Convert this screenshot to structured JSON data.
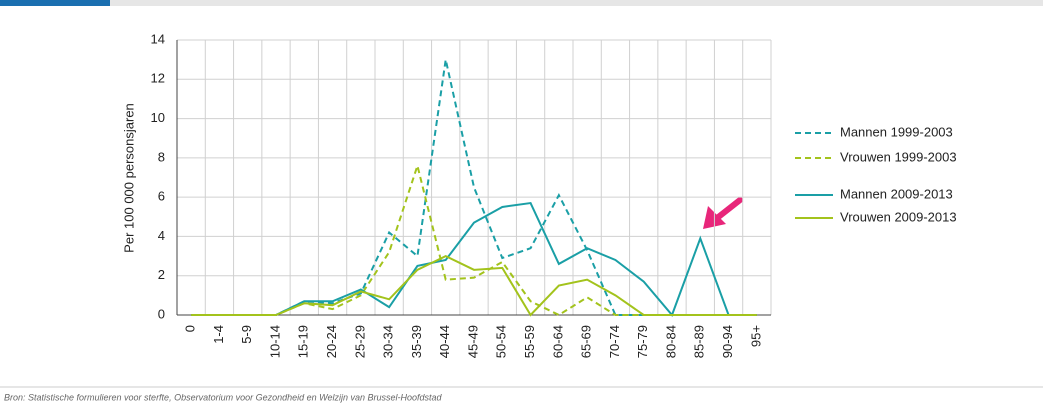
{
  "chart_data": {
    "type": "line",
    "ylabel": "Per 100 000 personsjaren",
    "categories": [
      "0",
      "1-4",
      "5-9",
      "10-14",
      "15-19",
      "20-24",
      "25-29",
      "30-34",
      "35-39",
      "40-44",
      "45-49",
      "50-54",
      "55-59",
      "60-64",
      "65-69",
      "70-74",
      "75-79",
      "80-84",
      "85-89",
      "90-94",
      "95+"
    ],
    "series": [
      {
        "name": "Mannen 1999-2003",
        "color": "#1a9fa6",
        "dashed": true,
        "values": [
          0,
          0,
          0,
          0,
          0.7,
          0.6,
          1.1,
          4.2,
          3.0,
          13.0,
          6.5,
          2.9,
          3.4,
          6.1,
          3.3,
          0,
          0,
          0,
          0,
          0,
          0
        ]
      },
      {
        "name": "Vrouwen 1999-2003",
        "color": "#a3c31c",
        "dashed": true,
        "values": [
          0,
          0,
          0,
          0,
          0.6,
          0.3,
          1.0,
          3.2,
          7.6,
          1.8,
          1.9,
          2.7,
          0.7,
          0,
          0.9,
          0,
          0,
          0,
          0,
          0,
          0
        ]
      },
      {
        "name": "Mannen 2009-2013",
        "color": "#1a9fa6",
        "dashed": false,
        "values": [
          0,
          0,
          0,
          0,
          0.7,
          0.7,
          1.3,
          0.4,
          2.5,
          2.8,
          4.7,
          5.5,
          5.7,
          2.6,
          3.4,
          2.8,
          1.7,
          0,
          3.9,
          0,
          0
        ]
      },
      {
        "name": "Vrouwen 2009-2013",
        "color": "#a3c31c",
        "dashed": false,
        "values": [
          0,
          0,
          0,
          0,
          0.6,
          0.5,
          1.2,
          0.8,
          2.3,
          3.0,
          2.3,
          2.4,
          0,
          1.5,
          1.8,
          1.0,
          0,
          0,
          0,
          0,
          0
        ]
      }
    ],
    "ylim": [
      0,
      14
    ],
    "yticks": [
      0,
      2,
      4,
      6,
      8,
      10,
      12,
      14
    ],
    "grid": true,
    "source": "Bron: Statistische formulieren voor sterfte, Observatorium voor Gezondheid en Welzijn van Brussel-Hoofdstad"
  }
}
